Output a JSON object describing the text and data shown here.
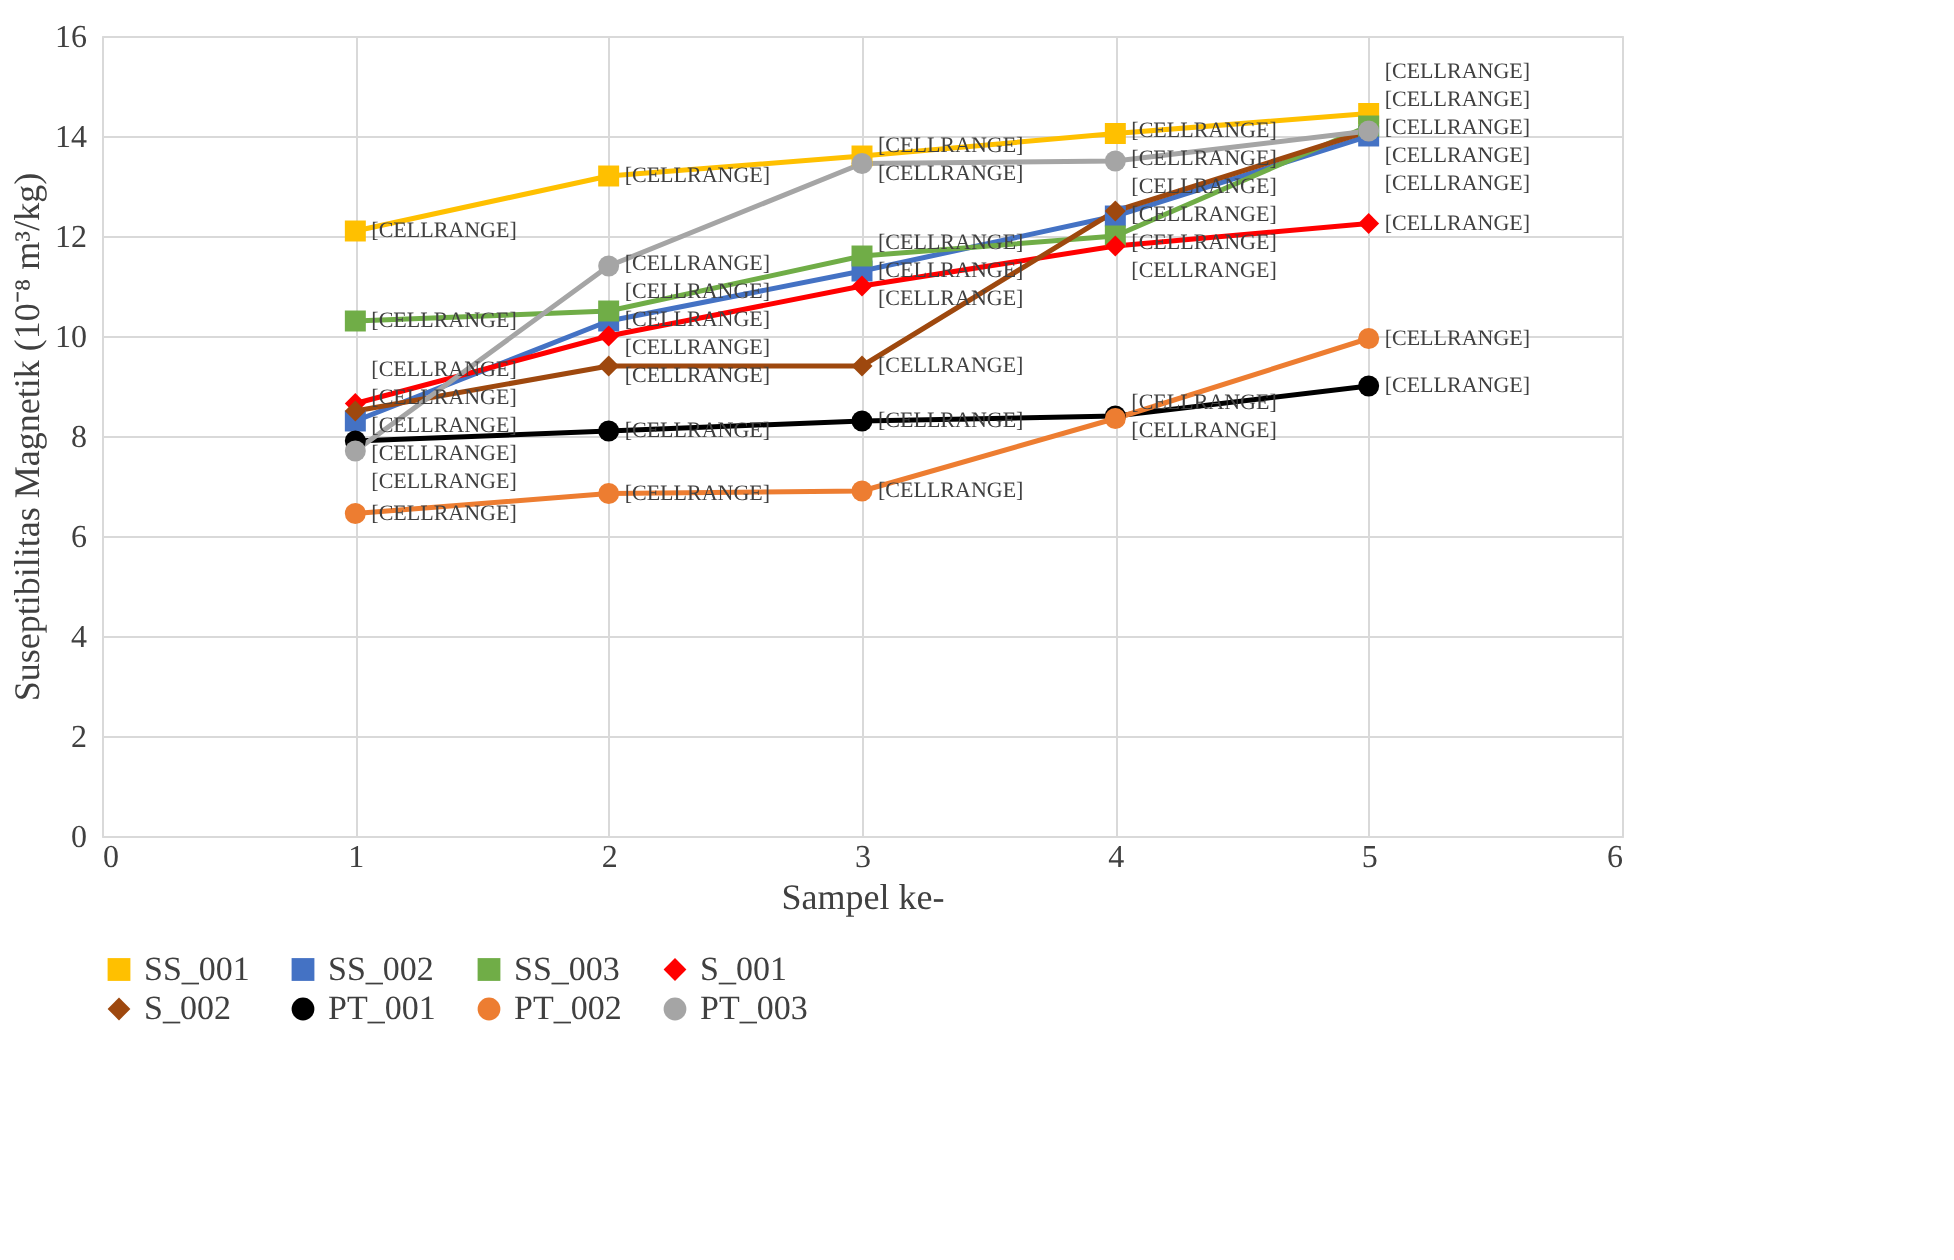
{
  "chart_data": {
    "type": "line",
    "xlabel": "Sampel ke-",
    "ylabel": "Suseptibilitas Magnetik (10⁻⁸ m³/kg)",
    "x": [
      1,
      2,
      3,
      4,
      5
    ],
    "xlim": [
      0,
      6
    ],
    "xticks": [
      0,
      1,
      2,
      3,
      4,
      5,
      6
    ],
    "ylim": [
      0,
      16
    ],
    "yticks": [
      0,
      2,
      4,
      6,
      8,
      10,
      12,
      14,
      16
    ],
    "grid": true,
    "legend": "bottom",
    "line_style": "solid",
    "series": [
      {
        "name": "SS_001",
        "color": "#ffc000",
        "marker": "square",
        "values": [
          12.1,
          13.2,
          13.6,
          14.05,
          14.45
        ],
        "value_labels": [
          "[CELLRANGE]",
          "[CELLRANGE]",
          "[CELLRANGE]",
          "[CELLRANGE]",
          "[CELLRANGE]"
        ]
      },
      {
        "name": "SS_002",
        "color": "#4472c4",
        "marker": "square",
        "values": [
          8.3,
          10.3,
          11.3,
          12.4,
          14.0
        ],
        "value_labels": [
          "[CELLRANGE]",
          "[CELLRANGE]",
          "[CELLRANGE]",
          "[CELLRANGE]",
          "[CELLRANGE]"
        ]
      },
      {
        "name": "SS_003",
        "color": "#70ad47",
        "marker": "square",
        "values": [
          10.3,
          10.5,
          11.6,
          12.0,
          14.2
        ],
        "value_labels": [
          "[CELLRANGE]",
          "[CELLRANGE]",
          "[CELLRANGE]",
          "[CELLRANGE]",
          "[CELLRANGE]"
        ]
      },
      {
        "name": "S_001",
        "color": "#ff0000",
        "marker": "diamond",
        "values": [
          8.65,
          10.0,
          11.0,
          11.8,
          12.25
        ],
        "value_labels": [
          "[CELLRANGE]",
          "[CELLRANGE]",
          "[CELLRANGE]",
          "[CELLRANGE]",
          "[CELLRANGE]"
        ]
      },
      {
        "name": "S_002",
        "color": "#9e480e",
        "marker": "diamond",
        "values": [
          8.5,
          9.4,
          9.4,
          12.5,
          14.1
        ],
        "value_labels": [
          "[CELLRANGE]",
          "[CELLRANGE]",
          "[CELLRANGE]",
          "[CELLRANGE]",
          "[CELLRANGE]"
        ]
      },
      {
        "name": "PT_001",
        "color": "#000000",
        "marker": "circle",
        "values": [
          7.9,
          8.1,
          8.3,
          8.4,
          9.0
        ],
        "value_labels": [
          "[CELLRANGE]",
          "[CELLRANGE]",
          "[CELLRANGE]",
          "[CELLRANGE]",
          "[CELLRANGE]"
        ]
      },
      {
        "name": "PT_002",
        "color": "#ed7d31",
        "marker": "circle",
        "values": [
          6.45,
          6.85,
          6.9,
          8.35,
          9.95
        ],
        "value_labels": [
          "[CELLRANGE]",
          "[CELLRANGE]",
          "[CELLRANGE]",
          "[CELLRANGE]",
          "[CELLRANGE]"
        ]
      },
      {
        "name": "PT_003",
        "color": "#a5a5a5",
        "marker": "circle",
        "values": [
          7.7,
          11.4,
          13.45,
          13.5,
          14.1
        ],
        "value_labels": [
          "[CELLRANGE]",
          "[CELLRANGE]",
          "[CELLRANGE]",
          "[CELLRANGE]",
          "[CELLRANGE]"
        ]
      }
    ]
  }
}
